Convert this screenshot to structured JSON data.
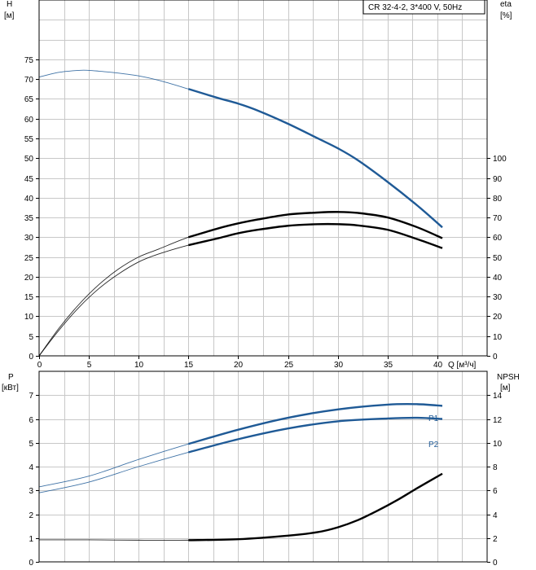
{
  "chart_data": [
    {
      "type": "line",
      "title": "CR 32-4-2, 3*400 V, 50Hz",
      "xlabel": "Q [м³/ч]",
      "xlim": [
        0,
        45
      ],
      "xticks": [
        0,
        5,
        10,
        15,
        20,
        25,
        30,
        35,
        40
      ],
      "ylabel_left_line1": "H",
      "ylabel_left_line2": "[м]",
      "ylim_left": [
        0,
        90
      ],
      "yticks_left": [
        0,
        5,
        10,
        15,
        20,
        25,
        30,
        35,
        40,
        45,
        50,
        55,
        60,
        65,
        70,
        75
      ],
      "ylabel_right_line1": "eta",
      "ylabel_right_line2": "[%]",
      "ylim_right": [
        0,
        180
      ],
      "yticks_right": [
        0,
        10,
        20,
        30,
        40,
        50,
        60,
        70,
        80,
        90,
        100
      ],
      "grid": true,
      "series": [
        {
          "name": "",
          "axis": "left",
          "color": "#1f5a96",
          "x": [
            0,
            2,
            4,
            5,
            6,
            8,
            10,
            12,
            15,
            18,
            20,
            22,
            25,
            28,
            30,
            32,
            35,
            38,
            40.5
          ],
          "y": [
            70.5,
            71.7,
            72.2,
            72.2,
            72.0,
            71.5,
            70.8,
            69.7,
            67.5,
            65.2,
            63.8,
            62.0,
            58.7,
            55.0,
            52.5,
            49.5,
            44.0,
            38.0,
            32.5
          ],
          "operating_range": [
            15,
            40.5
          ]
        },
        {
          "name": "",
          "axis": "right",
          "color": "#000000",
          "x": [
            0,
            2,
            4,
            6,
            8,
            10,
            12,
            15,
            18,
            20,
            22,
            25,
            28,
            30,
            32,
            35,
            38,
            40.5
          ],
          "y": [
            0,
            14,
            26,
            36,
            44,
            50,
            54,
            60,
            64.5,
            67,
            69,
            71.5,
            72.5,
            72.8,
            72.3,
            70,
            65,
            59.5
          ],
          "operating_range": [
            15,
            40.5
          ]
        },
        {
          "name": "",
          "axis": "right",
          "color": "#000000",
          "x": [
            0,
            2,
            4,
            6,
            8,
            10,
            12,
            15,
            18,
            20,
            22,
            25,
            28,
            30,
            32,
            35,
            38,
            40.5
          ],
          "y": [
            0,
            13,
            24.5,
            34,
            41.5,
            47.5,
            51.5,
            56,
            59.5,
            62,
            63.8,
            65.8,
            66.6,
            66.6,
            66,
            63.8,
            59,
            54.5
          ],
          "operating_range": [
            15,
            40.5
          ]
        }
      ]
    },
    {
      "type": "line",
      "xlim": [
        0,
        45
      ],
      "ylabel_left_line1": "P",
      "ylabel_left_line2": "[кВт]",
      "ylim_left": [
        0,
        8
      ],
      "yticks_left": [
        0,
        1,
        2,
        3,
        4,
        5,
        6,
        7
      ],
      "ylabel_right_line1": "NPSH",
      "ylabel_right_line2": "[м]",
      "ylim_right": [
        0,
        16
      ],
      "yticks_right": [
        0,
        2,
        4,
        6,
        8,
        10,
        12,
        14
      ],
      "grid": true,
      "series": [
        {
          "name": "P1",
          "axis": "left",
          "color": "#1f5a96",
          "x": [
            0,
            5,
            10,
            15,
            20,
            25,
            30,
            35,
            38,
            40.5
          ],
          "y": [
            3.15,
            3.6,
            4.3,
            4.95,
            5.55,
            6.05,
            6.4,
            6.6,
            6.62,
            6.55
          ],
          "operating_range": [
            15,
            40.5
          ]
        },
        {
          "name": "P2",
          "axis": "left",
          "color": "#1f5a96",
          "x": [
            0,
            5,
            10,
            15,
            20,
            25,
            30,
            35,
            38,
            40.5
          ],
          "y": [
            2.9,
            3.35,
            4.0,
            4.6,
            5.15,
            5.6,
            5.9,
            6.02,
            6.05,
            6.0
          ],
          "operating_range": [
            15,
            40.5
          ]
        },
        {
          "name": "",
          "axis": "right",
          "color": "#000000",
          "x": [
            0,
            5,
            10,
            15,
            20,
            25,
            28,
            30,
            32,
            34,
            36,
            38,
            40.5
          ],
          "y": [
            1.85,
            1.85,
            1.82,
            1.82,
            1.9,
            2.2,
            2.5,
            2.9,
            3.5,
            4.3,
            5.2,
            6.2,
            7.4
          ],
          "operating_range": [
            15,
            40.5
          ]
        }
      ]
    }
  ]
}
